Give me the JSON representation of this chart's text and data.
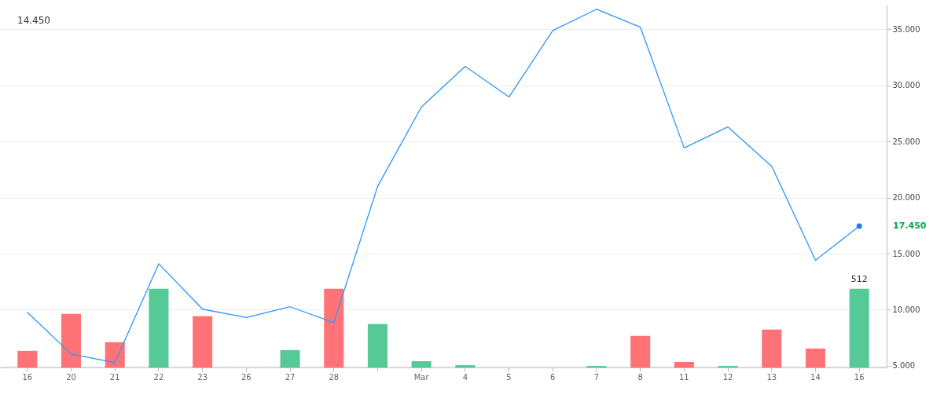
{
  "chart_data": {
    "type": "line",
    "categories": [
      "16",
      "20",
      "21",
      "22",
      "23",
      "26",
      "27",
      "28",
      null,
      "Mar",
      "4",
      "5",
      "6",
      "7",
      "8",
      "11",
      "12",
      "13",
      "14",
      "16"
    ],
    "series": [
      {
        "type": "bar",
        "axis": "y2",
        "colors": [
          "#ff6b6f",
          "#ff6b6f",
          "#ff6b6f",
          "#4cc790",
          "#ff6b6f",
          "#4cc790",
          "#4cc790",
          "#ff6b6f",
          "#4cc790",
          "#4cc790",
          "#4cc790",
          "#4cc790",
          "#4cc790",
          "#4cc790",
          "#ff6b6f",
          "#ff6b6f",
          "#4cc790",
          "#ff6b6f",
          "#ff6b6f",
          "#4cc790"
        ],
        "values": [
          108,
          348,
          164,
          512,
          333,
          0,
          113,
          512,
          282,
          41,
          15,
          0,
          0,
          10,
          205,
          36,
          10,
          246,
          123,
          512
        ],
        "value_labels": [
          null,
          null,
          null,
          null,
          null,
          null,
          null,
          null,
          null,
          null,
          null,
          null,
          null,
          null,
          null,
          null,
          null,
          null,
          null,
          "512"
        ]
      },
      {
        "color": "#2f95f5",
        "values": [
          9.77,
          6.05,
          5.28,
          14.1,
          10.05,
          9.3,
          10.26,
          8.85,
          21.0,
          28.08,
          31.7,
          28.97,
          34.9,
          36.8,
          35.2,
          24.43,
          26.3,
          22.8,
          14.41,
          17.45
        ]
      }
    ],
    "ylim": [
      4.85,
      37.2
    ],
    "yticks": [
      {
        "value": 5,
        "label": "5.000"
      },
      {
        "value": 10,
        "label": "10.000"
      },
      {
        "value": 15,
        "label": "15.000"
      },
      {
        "value": 20,
        "label": "20.000"
      },
      {
        "value": 25,
        "label": "25.000"
      },
      {
        "value": 30,
        "label": "30.000"
      },
      {
        "value": 35,
        "label": "35.000"
      }
    ],
    "y2lim": [
      0,
      2360
    ],
    "grid": "y",
    "annotations": [
      "14.450",
      "17.450"
    ]
  }
}
